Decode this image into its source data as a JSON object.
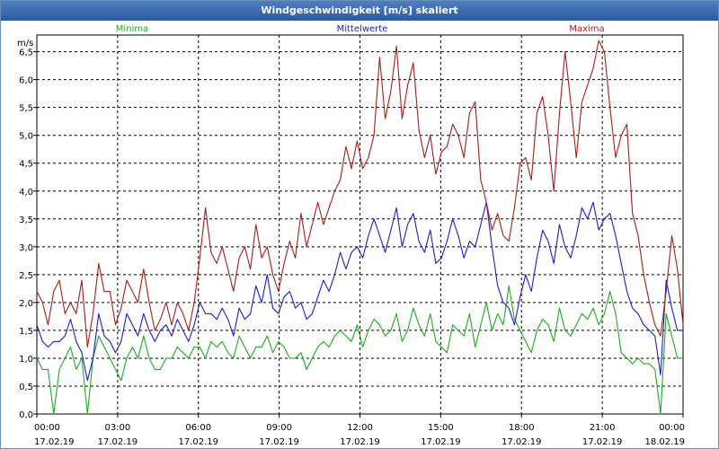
{
  "window": {
    "title": "Windgeschwindigkeit [m/s] skaliert"
  },
  "chart_data": {
    "type": "line",
    "title": "Windgeschwindigkeit [m/s] skaliert",
    "ylabel": "m/s",
    "xlabel": "",
    "ylim": [
      0,
      6.8
    ],
    "xlim_hours": [
      0,
      24
    ],
    "yticks": [
      "0,0",
      "0,5",
      "1,0",
      "1,5",
      "2,0",
      "2,5",
      "3,0",
      "3,5",
      "4,0",
      "4,5",
      "5,0",
      "5,5",
      "6,0",
      "6,5"
    ],
    "xticks": [
      {
        "time": "00:00",
        "date": "17.02.19"
      },
      {
        "time": "03:00",
        "date": "17.02.19"
      },
      {
        "time": "06:00",
        "date": "17.02.19"
      },
      {
        "time": "09:00",
        "date": "17.02.19"
      },
      {
        "time": "12:00",
        "date": "17.02.19"
      },
      {
        "time": "15:00",
        "date": "17.02.19"
      },
      {
        "time": "18:00",
        "date": "17.02.19"
      },
      {
        "time": "21:00",
        "date": "17.02.19"
      },
      {
        "time": "00:00",
        "date": "18.02.19"
      }
    ],
    "grid": true,
    "series": [
      {
        "name": "Minima",
        "color": "#1faa1f",
        "values": [
          1.0,
          0.8,
          0.8,
          0.0,
          0.8,
          1.0,
          1.2,
          0.8,
          1.0,
          0.0,
          1.0,
          1.4,
          1.2,
          1.0,
          0.8,
          0.6,
          1.0,
          1.2,
          1.0,
          1.4,
          1.0,
          0.8,
          0.8,
          1.0,
          1.0,
          1.2,
          1.1,
          1.0,
          1.2,
          1.2,
          1.0,
          1.3,
          1.2,
          1.3,
          1.1,
          1.0,
          1.4,
          1.2,
          1.0,
          1.2,
          1.2,
          1.4,
          1.1,
          1.3,
          1.2,
          1.0,
          1.0,
          1.1,
          0.8,
          1.0,
          1.2,
          1.3,
          1.2,
          1.4,
          1.5,
          1.4,
          1.3,
          1.6,
          1.2,
          1.5,
          1.7,
          1.6,
          1.4,
          1.5,
          1.8,
          1.3,
          1.5,
          1.9,
          1.6,
          1.4,
          1.8,
          1.3,
          1.2,
          1.1,
          1.6,
          1.5,
          1.4,
          1.8,
          1.2,
          1.6,
          2.0,
          1.5,
          1.8,
          1.6,
          2.3,
          1.7,
          1.5,
          1.3,
          1.1,
          1.5,
          1.7,
          1.6,
          1.3,
          1.9,
          1.5,
          1.4,
          1.6,
          1.8,
          1.7,
          1.9,
          1.6,
          1.8,
          2.2,
          1.8,
          1.1,
          1.0,
          0.9,
          1.0,
          0.9,
          0.9,
          0.8,
          0.0,
          1.8,
          1.4,
          1.0,
          1.0
        ]
      },
      {
        "name": "Mittelwerte",
        "color": "#1c1cc8",
        "values": [
          1.6,
          1.3,
          1.2,
          1.3,
          1.3,
          1.4,
          1.7,
          1.3,
          1.1,
          0.6,
          1.0,
          1.8,
          1.4,
          1.3,
          1.1,
          1.3,
          1.8,
          1.6,
          1.4,
          1.8,
          1.5,
          1.3,
          1.5,
          1.6,
          1.4,
          1.7,
          1.5,
          1.3,
          1.6,
          2.0,
          1.8,
          1.8,
          1.7,
          1.9,
          1.7,
          1.4,
          1.9,
          1.7,
          1.8,
          2.3,
          2.0,
          2.5,
          1.9,
          1.8,
          2.1,
          2.2,
          1.9,
          2.0,
          1.7,
          1.8,
          2.1,
          2.4,
          2.2,
          2.5,
          2.9,
          2.6,
          2.9,
          3.0,
          2.8,
          3.2,
          3.5,
          3.2,
          2.9,
          3.3,
          3.7,
          3.0,
          3.4,
          3.6,
          3.1,
          2.9,
          3.3,
          2.7,
          2.8,
          3.1,
          3.5,
          3.2,
          2.8,
          3.1,
          3.0,
          3.4,
          3.8,
          3.0,
          2.3,
          2.0,
          1.9,
          1.6,
          2.1,
          2.5,
          2.2,
          2.8,
          3.3,
          3.1,
          2.7,
          3.4,
          3.0,
          2.8,
          3.2,
          3.7,
          3.5,
          3.8,
          3.3,
          3.5,
          3.6,
          3.2,
          2.7,
          2.2,
          1.9,
          1.8,
          1.6,
          1.5,
          1.4,
          0.7,
          2.4,
          1.9,
          1.5,
          1.5
        ]
      },
      {
        "name": "Maxima",
        "color": "#a81c1c",
        "values": [
          2.2,
          2.0,
          1.6,
          2.2,
          2.4,
          1.8,
          2.0,
          1.8,
          2.4,
          1.2,
          1.8,
          2.7,
          2.2,
          2.2,
          1.6,
          1.9,
          2.4,
          2.2,
          2.0,
          2.6,
          2.0,
          1.5,
          1.7,
          2.0,
          1.6,
          2.0,
          1.8,
          1.5,
          2.0,
          2.8,
          3.7,
          2.9,
          2.7,
          3.0,
          2.6,
          2.2,
          2.8,
          3.0,
          2.6,
          3.4,
          2.8,
          3.0,
          2.5,
          2.2,
          2.7,
          3.1,
          2.8,
          3.6,
          3.0,
          3.4,
          3.8,
          3.4,
          3.7,
          4.0,
          4.2,
          4.8,
          4.4,
          4.9,
          4.4,
          4.6,
          5.0,
          6.4,
          5.3,
          5.8,
          6.6,
          5.3,
          5.9,
          6.3,
          5.1,
          4.6,
          5.0,
          4.3,
          4.7,
          4.8,
          5.2,
          5.0,
          4.6,
          5.4,
          5.6,
          4.2,
          3.8,
          3.3,
          3.6,
          3.2,
          3.1,
          3.7,
          4.5,
          4.6,
          4.2,
          5.4,
          5.7,
          5.0,
          4.0,
          5.4,
          6.5,
          5.6,
          4.6,
          5.6,
          5.9,
          6.2,
          6.7,
          6.5,
          5.5,
          4.6,
          5.0,
          5.2,
          3.6,
          3.2,
          2.5,
          2.0,
          1.6,
          1.4,
          2.2,
          3.2,
          2.6,
          1.6
        ]
      }
    ]
  }
}
